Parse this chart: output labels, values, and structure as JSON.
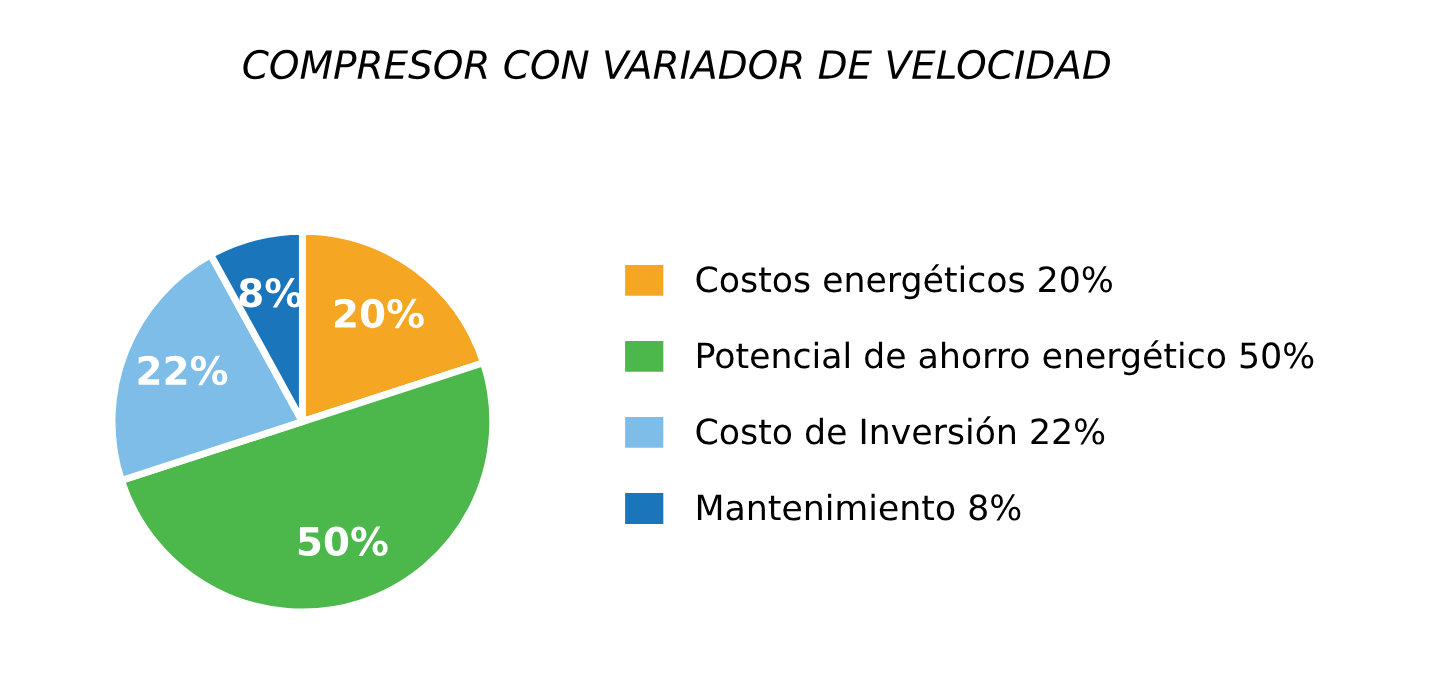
{
  "chart_data": {
    "type": "pie",
    "title": "COMPRESOR CON VARIADOR DE VELOCIDAD",
    "categories": [
      "Costos energéticos 20%",
      "Potencial de ahorro energético 50%",
      "Costo de Inversión 22%",
      "Mantenimiento 8%"
    ],
    "values": [
      20,
      50,
      22,
      8
    ],
    "value_labels": [
      "20%",
      "50%",
      "22%",
      "8%"
    ],
    "colors": [
      "#f5a623",
      "#4cb84c",
      "#7dbde8",
      "#1a75bb"
    ],
    "legend": "right"
  }
}
